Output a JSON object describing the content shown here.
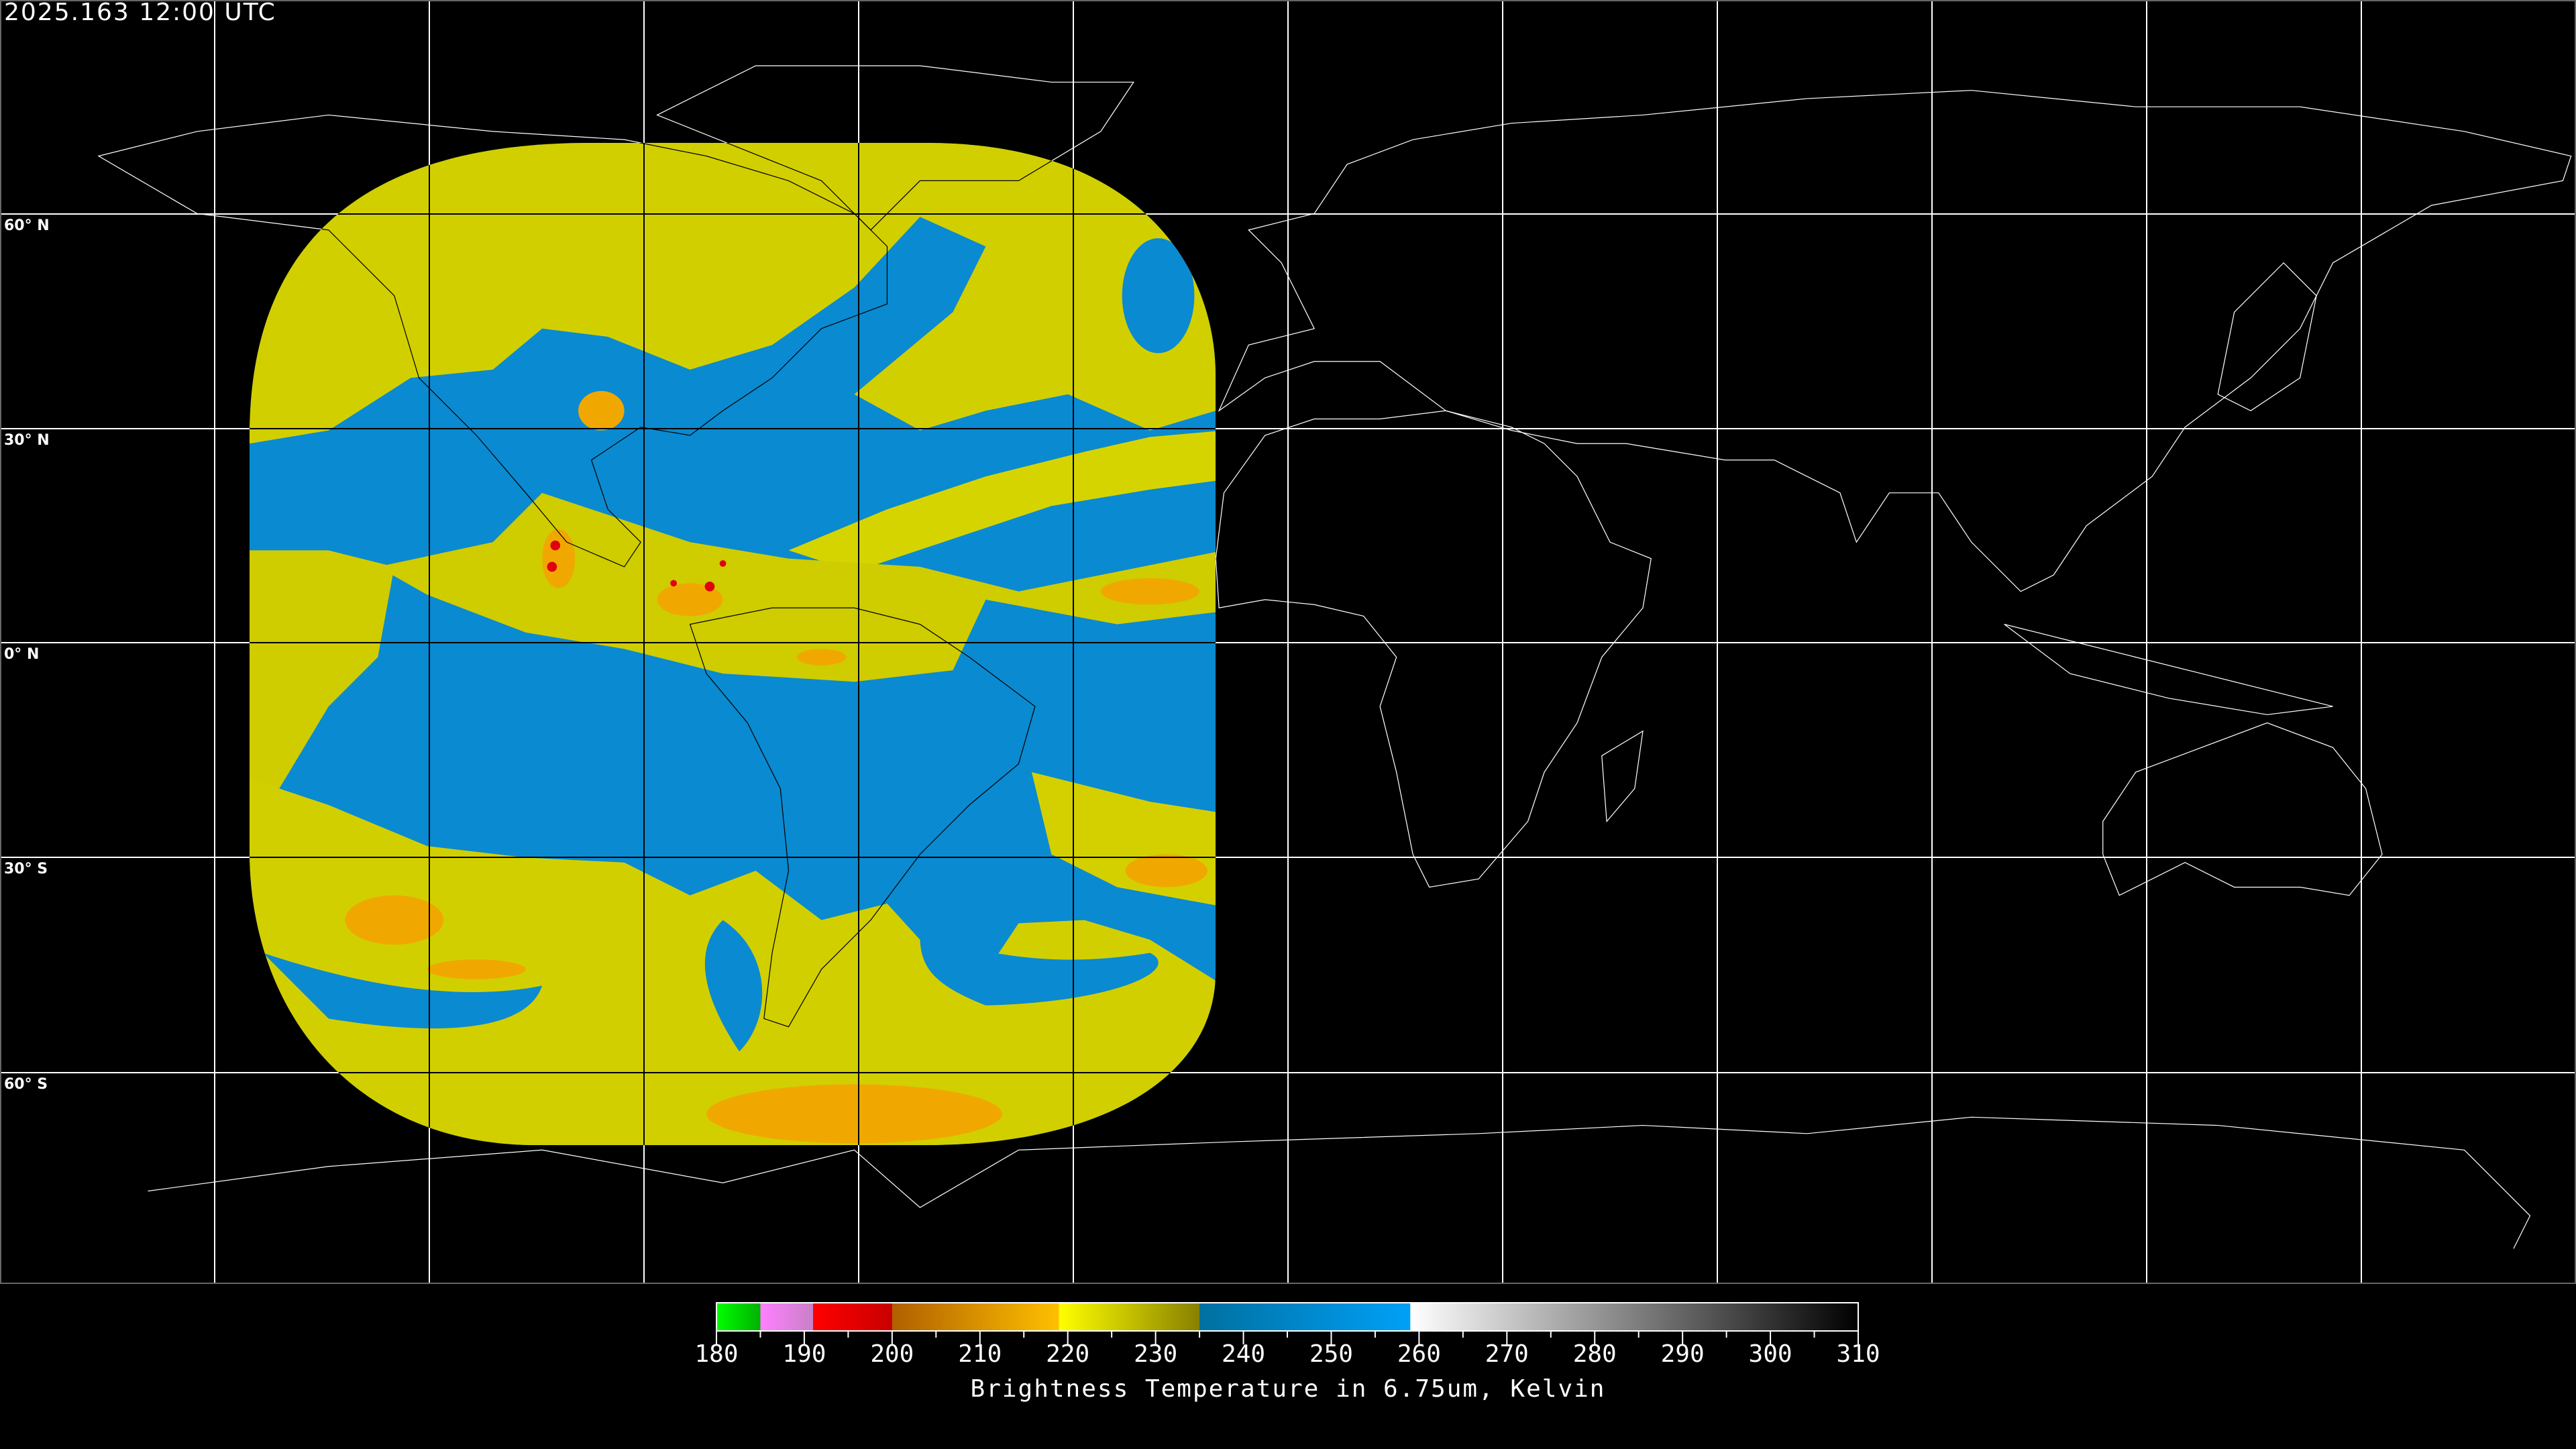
{
  "header": {
    "title": "2025.163 12:00 UTC"
  },
  "map": {
    "projection": "equirectangular",
    "lon_range": [
      -180,
      180
    ],
    "lat_range": [
      -90,
      90
    ],
    "grid_spacing_deg": 30,
    "grid_color": "#ffffff",
    "coastline_color": "#ffffff",
    "lat_labels": [
      "60° N",
      "30° N",
      "0° N",
      "30° S",
      "60° S"
    ],
    "satellite_colors": {
      "dry": "#0a8ad0",
      "moist": "#d2cf00",
      "cold": "#f0a800",
      "very_cold": "#e00010"
    }
  },
  "colorbar": {
    "title": "Brightness Temperature in 6.75um, Kelvin",
    "min": 180,
    "max": 310,
    "tick_labels": [
      "180",
      "190",
      "200",
      "210",
      "220",
      "230",
      "240",
      "250",
      "260",
      "270",
      "280",
      "290",
      "300",
      "310"
    ],
    "segments": [
      {
        "from": 180,
        "to": 185,
        "start": "#00ff00",
        "end": "#00b000"
      },
      {
        "from": 185,
        "to": 191,
        "start": "#ff80ff",
        "end": "#c880c8"
      },
      {
        "from": 191,
        "to": 200,
        "start": "#ff0000",
        "end": "#c80000"
      },
      {
        "from": 200,
        "to": 219,
        "start": "#b06000",
        "end": "#ffc000"
      },
      {
        "from": 219,
        "to": 235,
        "start": "#ffff00",
        "end": "#888000"
      },
      {
        "from": 235,
        "to": 259,
        "start": "#0070a0",
        "end": "#00a0f8"
      },
      {
        "from": 259,
        "to": 310,
        "start": "#ffffff",
        "end": "#000000"
      }
    ]
  }
}
